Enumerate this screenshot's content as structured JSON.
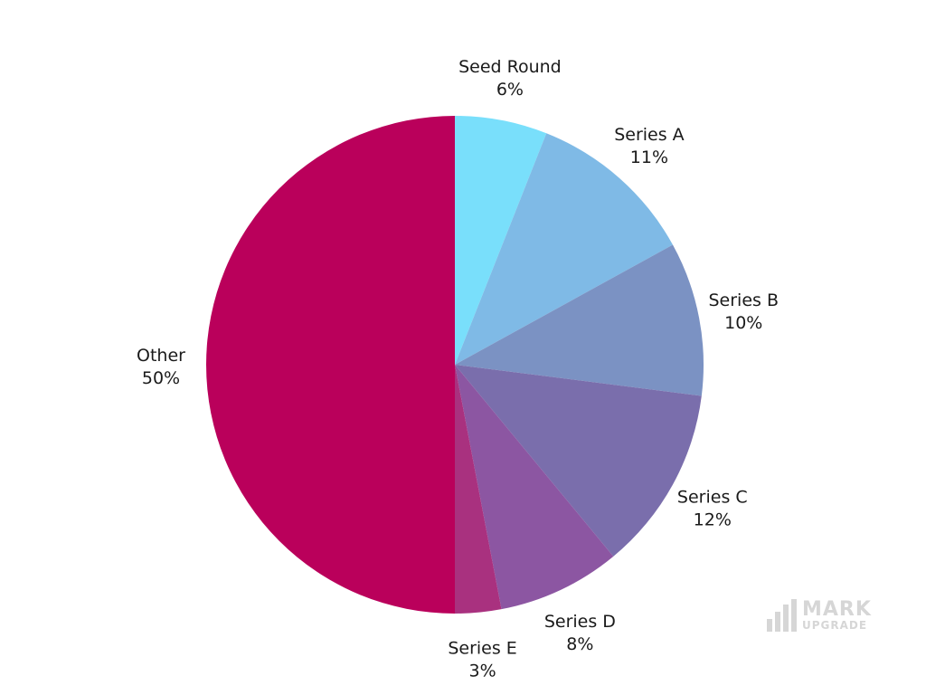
{
  "chart_data": {
    "type": "pie",
    "title": "",
    "slices": [
      {
        "label": "Seed Round",
        "value": 6,
        "display": "6%",
        "color": "#79DFFB"
      },
      {
        "label": "Series A",
        "value": 11,
        "display": "11%",
        "color": "#7FBAE6"
      },
      {
        "label": "Series B",
        "value": 10,
        "display": "10%",
        "color": "#7B92C3"
      },
      {
        "label": "Series C",
        "value": 12,
        "display": "12%",
        "color": "#7A6EAC"
      },
      {
        "label": "Series D",
        "value": 8,
        "display": "8%",
        "color": "#8C56A2"
      },
      {
        "label": "Series E",
        "value": 3,
        "display": "3%",
        "color": "#A9317F"
      },
      {
        "label": "Other",
        "value": 50,
        "display": "50%",
        "color": "#BA005B"
      }
    ],
    "start": "12 o'clock",
    "direction": "clockwise"
  },
  "watermark": {
    "line1": "MARK",
    "line2": "UPGRADE"
  }
}
